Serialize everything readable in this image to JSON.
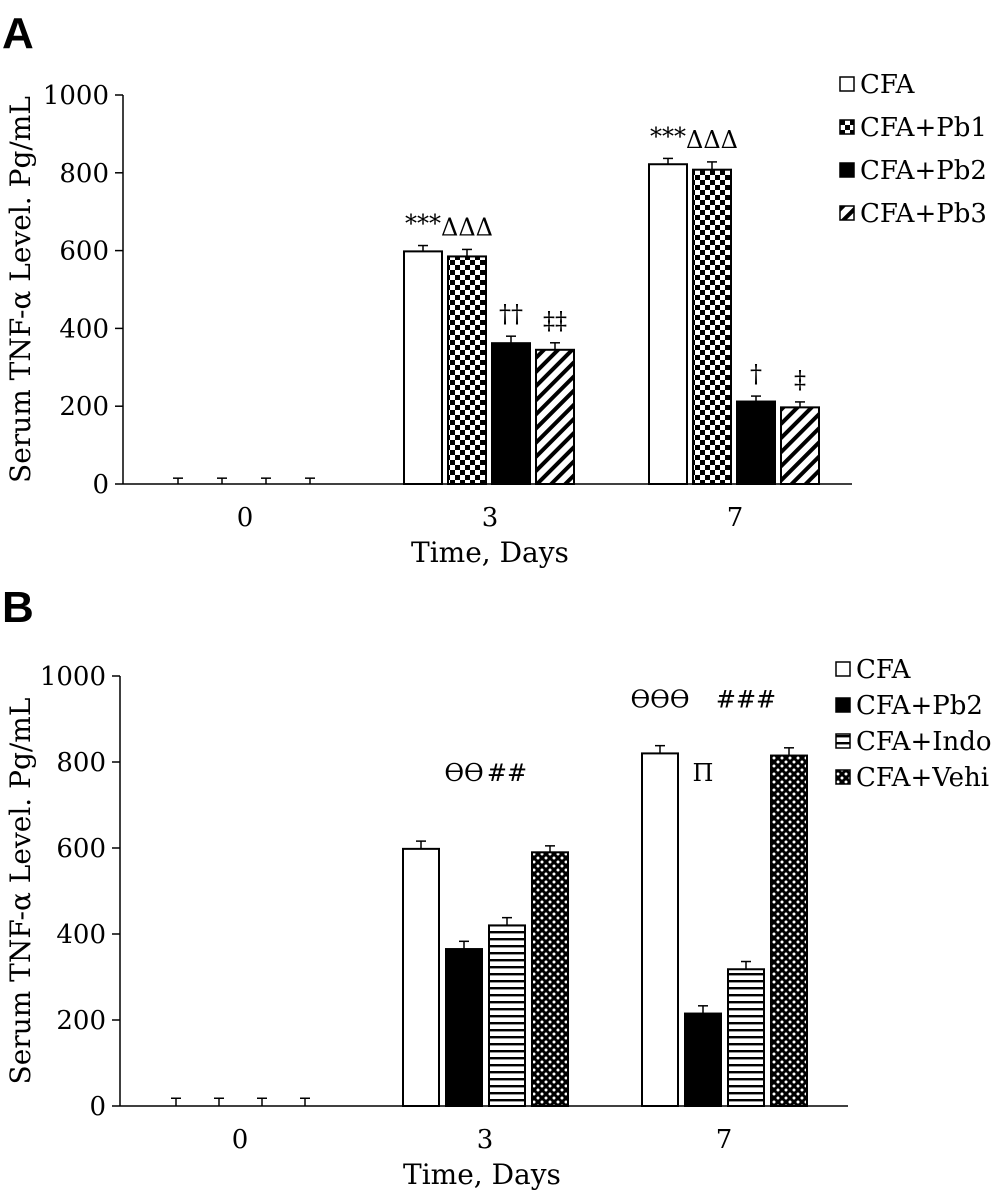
{
  "chart_data": [
    {
      "panel_label": "A",
      "type": "bar",
      "categories": [
        "0",
        "3",
        "7"
      ],
      "series": [
        {
          "name": "CFA",
          "pattern": "open",
          "values": [
            0,
            598,
            822
          ],
          "errors": [
            15,
            15,
            15
          ]
        },
        {
          "name": "CFA+Pb1",
          "pattern": "checker",
          "values": [
            0,
            585,
            808
          ],
          "errors": [
            15,
            18,
            20
          ]
        },
        {
          "name": "CFA+Pb2",
          "pattern": "solid",
          "values": [
            0,
            362,
            212
          ],
          "errors": [
            15,
            18,
            14
          ]
        },
        {
          "name": "CFA+Pb3",
          "pattern": "diagonal",
          "values": [
            0,
            345,
            197
          ],
          "errors": [
            15,
            18,
            14
          ]
        }
      ],
      "xlabel": "Time, Days",
      "ylabel": "Serum TNF-α Level. Pg/mL",
      "ylim": [
        0,
        1000
      ],
      "yticks": [
        0,
        200,
        400,
        600,
        800,
        1000
      ],
      "legend_position": "top-right",
      "annotations": [
        {
          "category": "3",
          "series": "CFA",
          "text": "***"
        },
        {
          "category": "3",
          "series": "CFA+Pb1",
          "text": "ΔΔΔ"
        },
        {
          "category": "3",
          "series": "CFA+Pb2",
          "text": "††"
        },
        {
          "category": "3",
          "series": "CFA+Pb3",
          "text": "‡‡"
        },
        {
          "category": "7",
          "series": "CFA",
          "text": "***"
        },
        {
          "category": "7",
          "series": "CFA+Pb1",
          "text": "ΔΔΔ"
        },
        {
          "category": "7",
          "series": "CFA+Pb2",
          "text": "†"
        },
        {
          "category": "7",
          "series": "CFA+Pb3",
          "text": "‡"
        }
      ]
    },
    {
      "panel_label": "B",
      "type": "bar",
      "categories": [
        "0",
        "3",
        "7"
      ],
      "series": [
        {
          "name": "CFA",
          "pattern": "open",
          "values": [
            0,
            598,
            820
          ],
          "errors": [
            18,
            18,
            18
          ]
        },
        {
          "name": "CFA+Pb2",
          "pattern": "solid",
          "values": [
            0,
            365,
            215
          ],
          "errors": [
            18,
            18,
            18
          ]
        },
        {
          "name": "CFA+Indo",
          "pattern": "horizontal",
          "values": [
            0,
            420,
            318
          ],
          "errors": [
            18,
            18,
            18
          ]
        },
        {
          "name": "CFA+Vehi",
          "pattern": "dots",
          "values": [
            0,
            590,
            815
          ],
          "errors": [
            18,
            15,
            18
          ]
        }
      ],
      "xlabel": "Time, Days",
      "ylabel": "Serum TNF-α Level. Pg/mL",
      "ylim": [
        0,
        1000
      ],
      "yticks": [
        0,
        200,
        400,
        600,
        800,
        1000
      ],
      "legend_position": "top-right",
      "annotations": [
        {
          "category": "3",
          "series": "CFA+Pb2",
          "text": "ϴϴ",
          "value": 775
        },
        {
          "category": "3",
          "series": "CFA+Indo",
          "text": "##",
          "value": 775
        },
        {
          "category": "7",
          "series": "CFA",
          "text": "ϴϴϴ",
          "value": 945
        },
        {
          "category": "7",
          "series": "CFA+Pb2",
          "text": "Π",
          "value": 775
        },
        {
          "category": "7",
          "series": "CFA+Indo",
          "text": "###",
          "value": 945
        }
      ]
    }
  ]
}
